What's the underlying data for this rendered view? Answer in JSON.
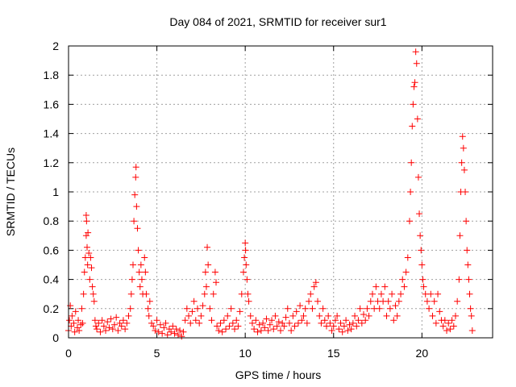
{
  "chart_data": {
    "type": "scatter",
    "title": "Day 084 of 2021, SRMTID for receiver sur1",
    "xlabel": "GPS time / hours",
    "ylabel": "SRMTID / TECUs",
    "xlim": [
      0,
      24
    ],
    "ylim": [
      0,
      2
    ],
    "xticks": [
      0,
      5,
      10,
      15,
      20
    ],
    "yticks": [
      0,
      0.2,
      0.4,
      0.6,
      0.8,
      1,
      1.2,
      1.4,
      1.6,
      1.8,
      2
    ],
    "xtick_labels": [
      "0",
      "5",
      "10",
      "15",
      "20"
    ],
    "ytick_labels": [
      "0",
      "0.2",
      "0.4",
      "0.6",
      "0.8",
      "1",
      "1.2",
      "1.4",
      "1.6",
      "1.8",
      "2"
    ],
    "grid": true,
    "marker": "+",
    "series": [
      {
        "name": "sur1",
        "color": "#ff0000",
        "points": [
          [
            0.0,
            0.05
          ],
          [
            0.05,
            0.12
          ],
          [
            0.1,
            0.22
          ],
          [
            0.15,
            0.08
          ],
          [
            0.2,
            0.15
          ],
          [
            0.3,
            0.1
          ],
          [
            0.35,
            0.04
          ],
          [
            0.4,
            0.18
          ],
          [
            0.5,
            0.07
          ],
          [
            0.55,
            0.12
          ],
          [
            0.6,
            0.05
          ],
          [
            0.7,
            0.09
          ],
          [
            0.75,
            0.2
          ],
          [
            0.8,
            0.1
          ],
          [
            0.85,
            0.3
          ],
          [
            0.9,
            0.45
          ],
          [
            0.95,
            0.55
          ],
          [
            1.0,
            0.7
          ],
          [
            1.0,
            0.84
          ],
          [
            1.02,
            0.8
          ],
          [
            1.05,
            0.62
          ],
          [
            1.08,
            0.5
          ],
          [
            1.1,
            0.72
          ],
          [
            1.15,
            0.58
          ],
          [
            1.2,
            0.4
          ],
          [
            1.25,
            0.55
          ],
          [
            1.3,
            0.48
          ],
          [
            1.35,
            0.35
          ],
          [
            1.4,
            0.3
          ],
          [
            1.45,
            0.25
          ],
          [
            1.5,
            0.12
          ],
          [
            1.55,
            0.08
          ],
          [
            1.6,
            0.06
          ],
          [
            1.7,
            0.1
          ],
          [
            1.8,
            0.04
          ],
          [
            1.9,
            0.12
          ],
          [
            2.0,
            0.08
          ],
          [
            2.1,
            0.05
          ],
          [
            2.2,
            0.11
          ],
          [
            2.3,
            0.07
          ],
          [
            2.4,
            0.13
          ],
          [
            2.5,
            0.06
          ],
          [
            2.6,
            0.09
          ],
          [
            2.7,
            0.14
          ],
          [
            2.8,
            0.05
          ],
          [
            2.9,
            0.1
          ],
          [
            3.0,
            0.08
          ],
          [
            3.1,
            0.12
          ],
          [
            3.2,
            0.06
          ],
          [
            3.3,
            0.1
          ],
          [
            3.4,
            0.15
          ],
          [
            3.5,
            0.2
          ],
          [
            3.55,
            0.3
          ],
          [
            3.6,
            0.4
          ],
          [
            3.65,
            0.5
          ],
          [
            3.7,
            0.8
          ],
          [
            3.75,
            0.98
          ],
          [
            3.8,
            1.1
          ],
          [
            3.82,
            1.17
          ],
          [
            3.85,
            0.9
          ],
          [
            3.9,
            0.75
          ],
          [
            3.95,
            0.6
          ],
          [
            4.0,
            0.45
          ],
          [
            4.05,
            0.35
          ],
          [
            4.1,
            0.5
          ],
          [
            4.15,
            0.4
          ],
          [
            4.2,
            0.3
          ],
          [
            4.3,
            0.55
          ],
          [
            4.35,
            0.45
          ],
          [
            4.4,
            0.3
          ],
          [
            4.5,
            0.2
          ],
          [
            4.55,
            0.15
          ],
          [
            4.6,
            0.25
          ],
          [
            4.7,
            0.1
          ],
          [
            4.8,
            0.08
          ],
          [
            4.9,
            0.05
          ],
          [
            5.0,
            0.12
          ],
          [
            5.1,
            0.04
          ],
          [
            5.2,
            0.09
          ],
          [
            5.3,
            0.03
          ],
          [
            5.4,
            0.07
          ],
          [
            5.5,
            0.1
          ],
          [
            5.6,
            0.02
          ],
          [
            5.7,
            0.06
          ],
          [
            5.8,
            0.04
          ],
          [
            5.9,
            0.08
          ],
          [
            6.0,
            0.03
          ],
          [
            6.1,
            0.06
          ],
          [
            6.2,
            0.02
          ],
          [
            6.3,
            0.05
          ],
          [
            6.4,
            0.01
          ],
          [
            6.5,
            0.04
          ],
          [
            6.6,
            0.12
          ],
          [
            6.7,
            0.2
          ],
          [
            6.8,
            0.15
          ],
          [
            6.9,
            0.1
          ],
          [
            7.0,
            0.18
          ],
          [
            7.1,
            0.25
          ],
          [
            7.2,
            0.12
          ],
          [
            7.3,
            0.2
          ],
          [
            7.4,
            0.1
          ],
          [
            7.5,
            0.15
          ],
          [
            7.6,
            0.22
          ],
          [
            7.7,
            0.3
          ],
          [
            7.75,
            0.45
          ],
          [
            7.8,
            0.35
          ],
          [
            7.85,
            0.62
          ],
          [
            7.9,
            0.5
          ],
          [
            8.0,
            0.2
          ],
          [
            8.1,
            0.12
          ],
          [
            8.2,
            0.3
          ],
          [
            8.3,
            0.45
          ],
          [
            8.35,
            0.38
          ],
          [
            8.4,
            0.08
          ],
          [
            8.5,
            0.05
          ],
          [
            8.6,
            0.1
          ],
          [
            8.7,
            0.04
          ],
          [
            8.8,
            0.12
          ],
          [
            8.9,
            0.06
          ],
          [
            9.0,
            0.15
          ],
          [
            9.1,
            0.08
          ],
          [
            9.2,
            0.2
          ],
          [
            9.3,
            0.1
          ],
          [
            9.4,
            0.06
          ],
          [
            9.5,
            0.12
          ],
          [
            9.6,
            0.08
          ],
          [
            9.7,
            0.18
          ],
          [
            9.8,
            0.3
          ],
          [
            9.9,
            0.45
          ],
          [
            9.95,
            0.55
          ],
          [
            10.0,
            0.65
          ],
          [
            10.02,
            0.6
          ],
          [
            10.05,
            0.5
          ],
          [
            10.1,
            0.4
          ],
          [
            10.15,
            0.3
          ],
          [
            10.2,
            0.25
          ],
          [
            10.3,
            0.15
          ],
          [
            10.4,
            0.1
          ],
          [
            10.5,
            0.06
          ],
          [
            10.6,
            0.12
          ],
          [
            10.7,
            0.04
          ],
          [
            10.8,
            0.09
          ],
          [
            10.9,
            0.05
          ],
          [
            11.0,
            0.1
          ],
          [
            11.1,
            0.07
          ],
          [
            11.2,
            0.13
          ],
          [
            11.3,
            0.05
          ],
          [
            11.4,
            0.09
          ],
          [
            11.5,
            0.12
          ],
          [
            11.6,
            0.06
          ],
          [
            11.7,
            0.15
          ],
          [
            11.8,
            0.08
          ],
          [
            11.9,
            0.11
          ],
          [
            12.0,
            0.05
          ],
          [
            12.1,
            0.1
          ],
          [
            12.2,
            0.08
          ],
          [
            12.3,
            0.14
          ],
          [
            12.4,
            0.2
          ],
          [
            12.5,
            0.1
          ],
          [
            12.6,
            0.05
          ],
          [
            12.7,
            0.15
          ],
          [
            12.8,
            0.08
          ],
          [
            12.9,
            0.18
          ],
          [
            13.0,
            0.1
          ],
          [
            13.1,
            0.22
          ],
          [
            13.2,
            0.12
          ],
          [
            13.3,
            0.15
          ],
          [
            13.4,
            0.2
          ],
          [
            13.5,
            0.1
          ],
          [
            13.6,
            0.25
          ],
          [
            13.7,
            0.3
          ],
          [
            13.8,
            0.2
          ],
          [
            13.9,
            0.35
          ],
          [
            14.0,
            0.38
          ],
          [
            14.1,
            0.25
          ],
          [
            14.2,
            0.15
          ],
          [
            14.3,
            0.1
          ],
          [
            14.4,
            0.2
          ],
          [
            14.5,
            0.12
          ],
          [
            14.6,
            0.08
          ],
          [
            14.7,
            0.15
          ],
          [
            14.8,
            0.1
          ],
          [
            14.9,
            0.05
          ],
          [
            15.0,
            0.08
          ],
          [
            15.1,
            0.12
          ],
          [
            15.2,
            0.15
          ],
          [
            15.3,
            0.06
          ],
          [
            15.4,
            0.1
          ],
          [
            15.5,
            0.04
          ],
          [
            15.6,
            0.08
          ],
          [
            15.7,
            0.12
          ],
          [
            15.8,
            0.05
          ],
          [
            15.9,
            0.09
          ],
          [
            16.0,
            0.06
          ],
          [
            16.1,
            0.1
          ],
          [
            16.2,
            0.15
          ],
          [
            16.3,
            0.08
          ],
          [
            16.4,
            0.12
          ],
          [
            16.5,
            0.2
          ],
          [
            16.6,
            0.1
          ],
          [
            16.7,
            0.16
          ],
          [
            16.8,
            0.12
          ],
          [
            16.9,
            0.2
          ],
          [
            17.0,
            0.15
          ],
          [
            17.1,
            0.25
          ],
          [
            17.2,
            0.3
          ],
          [
            17.3,
            0.2
          ],
          [
            17.4,
            0.35
          ],
          [
            17.5,
            0.25
          ],
          [
            17.6,
            0.2
          ],
          [
            17.7,
            0.3
          ],
          [
            17.8,
            0.25
          ],
          [
            17.9,
            0.35
          ],
          [
            18.0,
            0.15
          ],
          [
            18.1,
            0.25
          ],
          [
            18.2,
            0.2
          ],
          [
            18.3,
            0.3
          ],
          [
            18.4,
            0.12
          ],
          [
            18.5,
            0.22
          ],
          [
            18.6,
            0.15
          ],
          [
            18.7,
            0.25
          ],
          [
            18.8,
            0.3
          ],
          [
            18.9,
            0.4
          ],
          [
            19.0,
            0.35
          ],
          [
            19.1,
            0.45
          ],
          [
            19.2,
            0.55
          ],
          [
            19.3,
            0.8
          ],
          [
            19.35,
            1.0
          ],
          [
            19.4,
            1.2
          ],
          [
            19.45,
            1.45
          ],
          [
            19.5,
            1.6
          ],
          [
            19.55,
            1.72
          ],
          [
            19.6,
            1.75
          ],
          [
            19.65,
            1.96
          ],
          [
            19.7,
            1.88
          ],
          [
            19.75,
            1.5
          ],
          [
            19.8,
            1.1
          ],
          [
            19.85,
            0.85
          ],
          [
            19.9,
            0.7
          ],
          [
            19.95,
            0.6
          ],
          [
            20.0,
            0.5
          ],
          [
            20.05,
            0.4
          ],
          [
            20.1,
            0.35
          ],
          [
            20.2,
            0.3
          ],
          [
            20.3,
            0.25
          ],
          [
            20.4,
            0.2
          ],
          [
            20.5,
            0.3
          ],
          [
            20.6,
            0.15
          ],
          [
            20.7,
            0.25
          ],
          [
            20.8,
            0.1
          ],
          [
            20.9,
            0.3
          ],
          [
            21.0,
            0.18
          ],
          [
            21.1,
            0.12
          ],
          [
            21.2,
            0.08
          ],
          [
            21.3,
            0.12
          ],
          [
            21.4,
            0.05
          ],
          [
            21.5,
            0.1
          ],
          [
            21.6,
            0.06
          ],
          [
            21.7,
            0.12
          ],
          [
            21.8,
            0.08
          ],
          [
            21.9,
            0.15
          ],
          [
            22.0,
            0.25
          ],
          [
            22.1,
            0.4
          ],
          [
            22.15,
            0.7
          ],
          [
            22.2,
            1.0
          ],
          [
            22.25,
            1.2
          ],
          [
            22.3,
            1.38
          ],
          [
            22.35,
            1.3
          ],
          [
            22.4,
            1.15
          ],
          [
            22.45,
            1.0
          ],
          [
            22.5,
            0.8
          ],
          [
            22.55,
            0.6
          ],
          [
            22.6,
            0.5
          ],
          [
            22.65,
            0.4
          ],
          [
            22.7,
            0.3
          ],
          [
            22.75,
            0.2
          ],
          [
            22.8,
            0.15
          ],
          [
            22.85,
            0.05
          ]
        ]
      }
    ]
  }
}
